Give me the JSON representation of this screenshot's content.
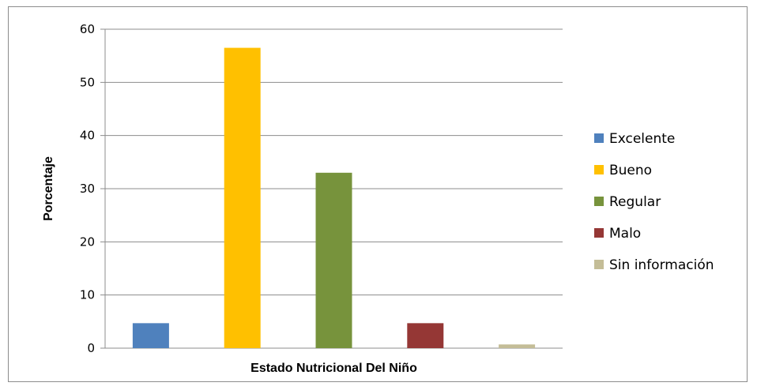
{
  "chart_data": {
    "type": "bar",
    "title": "",
    "xlabel": "Estado Nutricional Del Niño",
    "ylabel": "Porcentaje",
    "ylim": [
      0,
      60
    ],
    "yticks": [
      0,
      10,
      20,
      30,
      40,
      50,
      60
    ],
    "grid": true,
    "legend_position": "right",
    "series": [
      {
        "name": "Excelente",
        "value": 4.7,
        "color": "#4F81BD"
      },
      {
        "name": "Bueno",
        "value": 56.5,
        "color": "#FFC000"
      },
      {
        "name": "Regular",
        "value": 33.0,
        "color": "#77933C"
      },
      {
        "name": "Malo",
        "value": 4.7,
        "color": "#953735"
      },
      {
        "name": "Sin información",
        "value": 0.7,
        "color": "#C4BD97"
      }
    ]
  }
}
